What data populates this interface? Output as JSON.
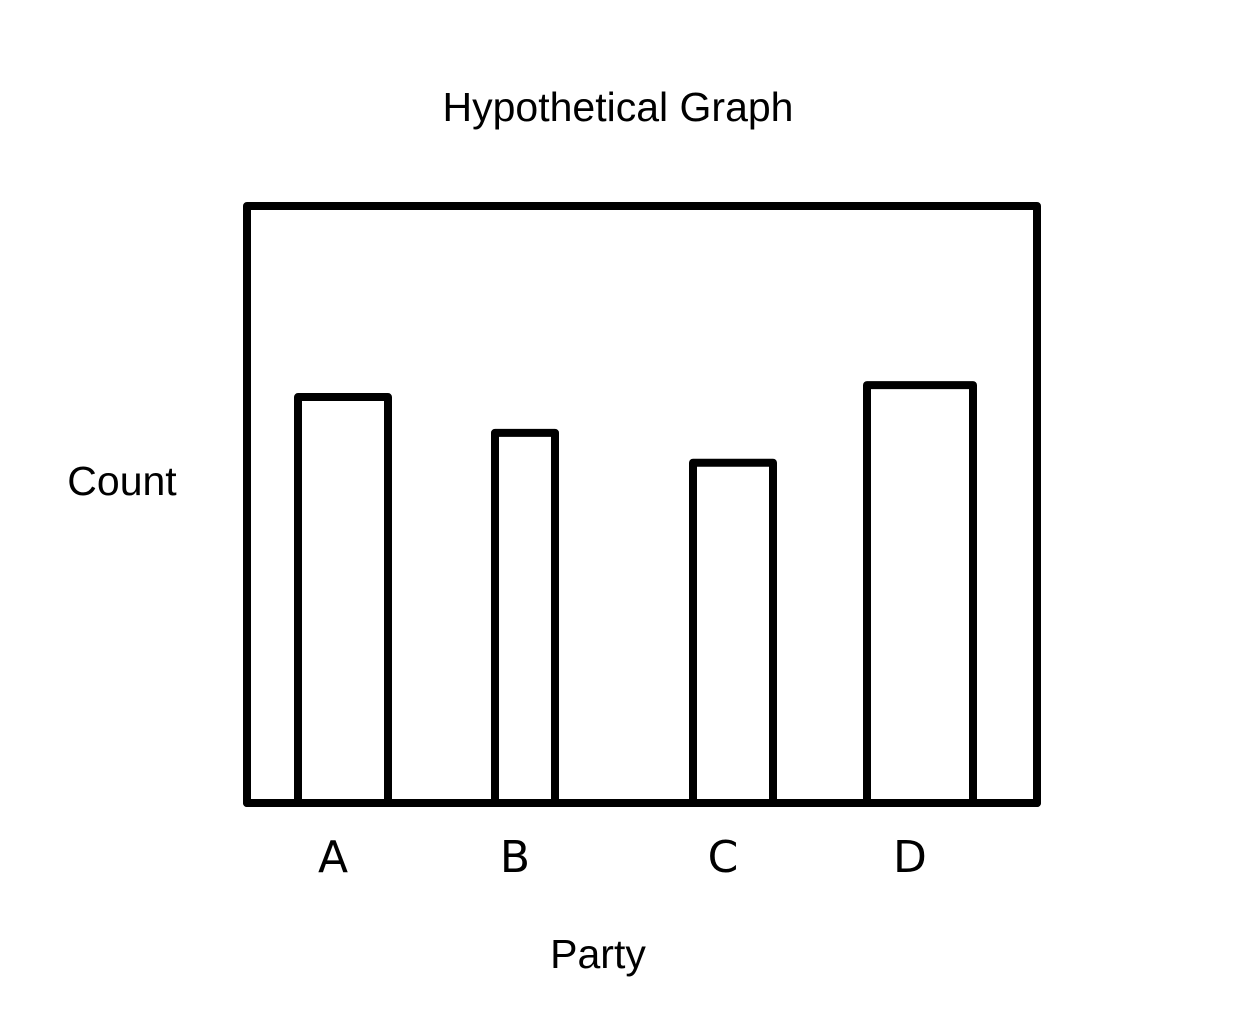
{
  "chart_data": {
    "type": "bar",
    "title": "Hypothetical Graph",
    "xlabel": "Party",
    "ylabel": "Count",
    "categories": [
      "A",
      "B",
      "C",
      "D"
    ],
    "values": [
      68,
      62,
      57,
      70
    ],
    "ylim": [
      0,
      100
    ],
    "grid": false,
    "legend": "none",
    "colors": {
      "stroke": "#000000",
      "fill": "#ffffff",
      "background": "#ffffff"
    }
  }
}
